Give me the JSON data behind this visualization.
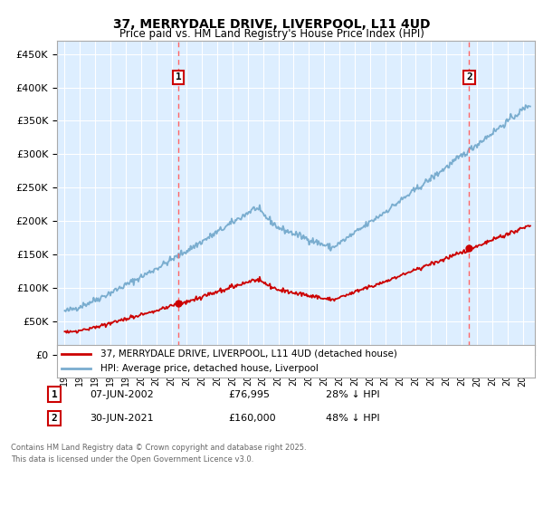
{
  "title1": "37, MERRYDALE DRIVE, LIVERPOOL, L11 4UD",
  "title2": "Price paid vs. HM Land Registry's House Price Index (HPI)",
  "ylabel_ticks": [
    "£0",
    "£50K",
    "£100K",
    "£150K",
    "£200K",
    "£250K",
    "£300K",
    "£350K",
    "£400K",
    "£450K"
  ],
  "ytick_values": [
    0,
    50000,
    100000,
    150000,
    200000,
    250000,
    300000,
    350000,
    400000,
    450000
  ],
  "ylim": [
    0,
    470000
  ],
  "xlim_start": 1994.5,
  "xlim_end": 2025.8,
  "marker1_x": 2002.44,
  "marker1_y": 76995,
  "marker2_x": 2021.5,
  "marker2_y": 160000,
  "marker1_label": "07-JUN-2002",
  "marker1_price": "£76,995",
  "marker1_hpi": "28% ↓ HPI",
  "marker2_label": "30-JUN-2021",
  "marker2_price": "£160,000",
  "marker2_hpi": "48% ↓ HPI",
  "legend_line1": "37, MERRYDALE DRIVE, LIVERPOOL, L11 4UD (detached house)",
  "legend_line2": "HPI: Average price, detached house, Liverpool",
  "footer": "Contains HM Land Registry data © Crown copyright and database right 2025.\nThis data is licensed under the Open Government Licence v3.0.",
  "line_color_red": "#cc0000",
  "line_color_blue": "#7aadcf",
  "bg_color": "#ddeeff",
  "grid_color": "#ffffff",
  "dashed_color": "#ff6666"
}
